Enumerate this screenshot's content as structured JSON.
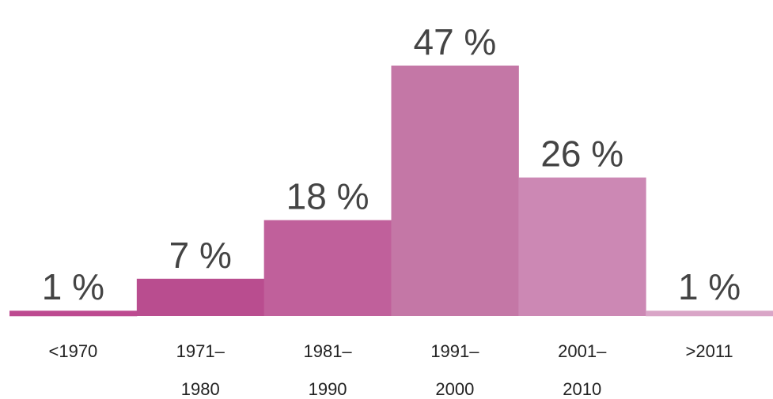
{
  "chart_data": {
    "type": "bar",
    "categories": [
      "<1970",
      "1971–1980",
      "1981–1990",
      "1991–2000",
      "2001–2010",
      ">2011"
    ],
    "values": [
      1,
      7,
      18,
      47,
      26,
      1
    ],
    "value_labels": [
      "1 %",
      "7 %",
      "18 %",
      "47 %",
      "26 %",
      "1 %"
    ],
    "colors": [
      "#bd4a90",
      "#b94d8f",
      "#c0609b",
      "#c477a6",
      "#cc88b4",
      "#d9a5c7"
    ]
  }
}
